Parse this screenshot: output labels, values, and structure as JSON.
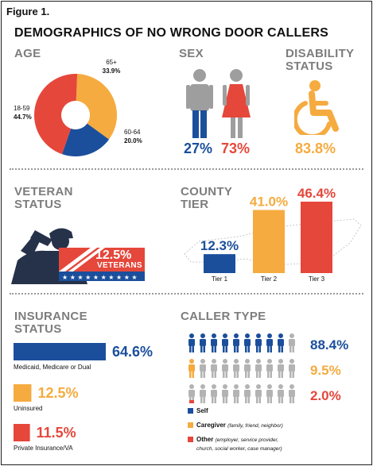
{
  "figure_label": "Figure 1.",
  "main_title": "DEMOGRAPHICS OF NO WRONG DOOR CALLERS",
  "colors": {
    "navy": "#1b4f9c",
    "orange": "#f5ab3f",
    "red": "#e5473b",
    "gray": "#9e9e9e",
    "dark": "#111111"
  },
  "age": {
    "heading": "AGE",
    "labels": [
      "65+",
      "60-64",
      "18-59"
    ],
    "values": [
      "33.9%",
      "20.0%",
      "44.7%"
    ]
  },
  "sex": {
    "heading": "SEX",
    "male": "27%",
    "female": "73%"
  },
  "disability": {
    "heading_line1": "DISABILITY",
    "heading_line2": "STATUS",
    "value": "83.8%"
  },
  "veteran": {
    "heading_line1": "VETERAN",
    "heading_line2": "STATUS",
    "value": "12.5%",
    "banner_label": "VETERANS"
  },
  "county": {
    "heading_line1": "COUNTY",
    "heading_line2": "TIER"
  },
  "insurance": {
    "heading_line1": "INSURANCE",
    "heading_line2": "STATUS"
  },
  "caller": {
    "heading": "CALLER TYPE",
    "legend": [
      {
        "label": "Self",
        "note": ""
      },
      {
        "label": "Caregiver",
        "note": "(family, friend, neighbor)"
      },
      {
        "label": "Other",
        "note": "(employer, service provider,",
        "note2": "church, social worker, case manager)"
      }
    ]
  },
  "chart_data": [
    {
      "type": "pie",
      "title": "AGE",
      "categories": [
        "65+",
        "60-64",
        "18-59"
      ],
      "values": [
        33.9,
        20.0,
        44.7
      ],
      "colors": [
        "#f5ab3f",
        "#1b4f9c",
        "#e5473b"
      ],
      "donut": true
    },
    {
      "type": "bar",
      "title": "COUNTY TIER",
      "categories": [
        "Tier 1",
        "Tier 2",
        "Tier 3"
      ],
      "values": [
        12.3,
        41.0,
        46.4
      ],
      "value_labels": [
        "12.3%",
        "41.0%",
        "46.4%"
      ],
      "colors": [
        "#1b4f9c",
        "#f5ab3f",
        "#e5473b"
      ]
    },
    {
      "type": "bar",
      "title": "INSURANCE STATUS",
      "orientation": "horizontal",
      "categories": [
        "Medicaid, Medicare or Dual",
        "Uninsured",
        "Private Insurance/VA"
      ],
      "values": [
        64.6,
        12.5,
        11.5
      ],
      "value_labels": [
        "64.6%",
        "12.5%",
        "11.5%"
      ],
      "colors": [
        "#1b4f9c",
        "#f5ab3f",
        "#e5473b"
      ]
    },
    {
      "type": "bar",
      "title": "CALLER TYPE",
      "categories": [
        "Self",
        "Caregiver",
        "Other"
      ],
      "values": [
        88.4,
        9.5,
        2.0
      ],
      "value_labels": [
        "88.4%",
        "9.5%",
        "2.0%"
      ],
      "colors": [
        "#1b4f9c",
        "#f5ab3f",
        "#e5473b"
      ]
    }
  ]
}
